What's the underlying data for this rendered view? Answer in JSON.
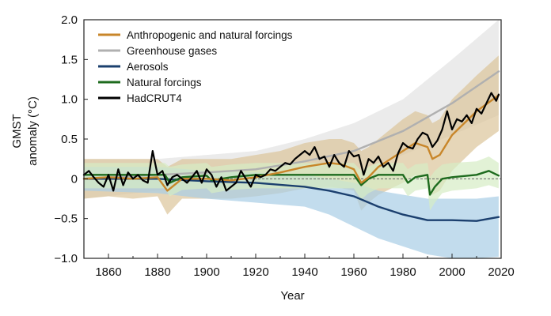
{
  "chart_data": {
    "type": "line",
    "title": "",
    "xlabel": "Year",
    "ylabel_line1": "GMST",
    "ylabel_line2": "anomaly (°C)",
    "xlim": [
      1850,
      2020
    ],
    "ylim": [
      -1.0,
      2.0
    ],
    "xticks": [
      1860,
      1880,
      1900,
      1920,
      1940,
      1960,
      1980,
      2000,
      2020
    ],
    "xtick_labels": [
      "1860",
      "1880",
      "1900",
      "1920",
      "1940",
      "1960",
      "1980",
      "2000",
      "2020"
    ],
    "yticks": [
      -1.0,
      -0.5,
      0,
      0.5,
      1.0,
      1.5,
      2.0
    ],
    "ytick_labels": [
      "−1.0",
      "−0.5",
      "0",
      "0.5",
      "1.0",
      "1.5",
      "2.0"
    ],
    "legend_position": "top-left",
    "reference_line": {
      "y": 0,
      "style": "dashed"
    },
    "series": [
      {
        "name": "Anthropogenic and natural forcings",
        "color": "#c8862a",
        "band_color": "#dcc49a",
        "x": [
          1850,
          1860,
          1870,
          1880,
          1884,
          1890,
          1900,
          1910,
          1920,
          1930,
          1940,
          1950,
          1955,
          1960,
          1963,
          1966,
          1970,
          1980,
          1985,
          1990,
          1992,
          1995,
          2000,
          2010,
          2019
        ],
        "y": [
          0.0,
          0.02,
          0.0,
          0.02,
          -0.15,
          0.0,
          0.0,
          -0.02,
          0.02,
          0.08,
          0.15,
          0.2,
          0.18,
          0.12,
          -0.05,
          0.02,
          0.15,
          0.35,
          0.45,
          0.4,
          0.25,
          0.3,
          0.55,
          0.85,
          1.05
        ],
        "upper": [
          0.25,
          0.25,
          0.25,
          0.25,
          0.15,
          0.25,
          0.25,
          0.25,
          0.3,
          0.35,
          0.45,
          0.5,
          0.5,
          0.45,
          0.35,
          0.4,
          0.5,
          0.75,
          0.85,
          0.8,
          0.7,
          0.75,
          1.0,
          1.3,
          1.55
        ],
        "lower": [
          -0.25,
          -0.22,
          -0.25,
          -0.22,
          -0.45,
          -0.25,
          -0.25,
          -0.25,
          -0.22,
          -0.18,
          -0.12,
          -0.1,
          -0.12,
          -0.15,
          -0.4,
          -0.3,
          -0.2,
          -0.05,
          0.05,
          0.0,
          -0.2,
          -0.15,
          0.1,
          0.4,
          0.6
        ]
      },
      {
        "name": "Greenhouse gases",
        "color": "#b0b0b0",
        "band_color": "#e2e2e2",
        "x": [
          1850,
          1880,
          1900,
          1920,
          1940,
          1960,
          1980,
          2000,
          2019
        ],
        "y": [
          0.0,
          0.05,
          0.08,
          0.12,
          0.22,
          0.35,
          0.6,
          0.95,
          1.35
        ],
        "upper": [
          0.25,
          0.25,
          0.3,
          0.35,
          0.5,
          0.7,
          1.0,
          1.5,
          2.0
        ],
        "lower": [
          -0.25,
          -0.15,
          -0.12,
          -0.1,
          0.0,
          0.1,
          0.3,
          0.55,
          0.8
        ]
      },
      {
        "name": "Aerosols",
        "color": "#1b3f6e",
        "band_color": "#a8cde6",
        "x": [
          1850,
          1880,
          1900,
          1920,
          1940,
          1950,
          1960,
          1970,
          1980,
          1990,
          2000,
          2010,
          2019
        ],
        "y": [
          0.0,
          0.0,
          -0.03,
          -0.05,
          -0.1,
          -0.15,
          -0.22,
          -0.35,
          -0.45,
          -0.52,
          -0.52,
          -0.53,
          -0.48
        ],
        "upper": [
          0.15,
          0.15,
          0.1,
          0.08,
          0.05,
          0.0,
          -0.05,
          -0.15,
          -0.2,
          -0.25,
          -0.25,
          -0.25,
          -0.22
        ],
        "lower": [
          -0.15,
          -0.18,
          -0.25,
          -0.3,
          -0.35,
          -0.45,
          -0.6,
          -0.75,
          -0.85,
          -0.95,
          -1.0,
          -1.0,
          -0.98
        ]
      },
      {
        "name": "Natural forcings",
        "color": "#1e6b1e",
        "band_color": "#d6ecc4",
        "x": [
          1850,
          1870,
          1883,
          1885,
          1890,
          1900,
          1902,
          1910,
          1920,
          1940,
          1960,
          1963,
          1966,
          1970,
          1980,
          1982,
          1985,
          1990,
          1991,
          1993,
          1996,
          2000,
          2010,
          2015,
          2019
        ],
        "y": [
          0.05,
          0.05,
          0.05,
          -0.05,
          0.02,
          0.04,
          -0.02,
          0.02,
          0.05,
          0.05,
          0.05,
          -0.08,
          0.0,
          0.05,
          0.05,
          -0.05,
          0.02,
          0.05,
          -0.2,
          -0.1,
          0.0,
          0.02,
          0.05,
          0.1,
          0.04
        ],
        "upper": [
          0.2,
          0.2,
          0.2,
          0.15,
          0.18,
          0.2,
          0.15,
          0.18,
          0.2,
          0.2,
          0.2,
          0.1,
          0.15,
          0.2,
          0.2,
          0.12,
          0.18,
          0.2,
          0.02,
          0.1,
          0.18,
          0.2,
          0.22,
          0.28,
          0.2
        ],
        "lower": [
          -0.12,
          -0.12,
          -0.12,
          -0.22,
          -0.14,
          -0.12,
          -0.18,
          -0.14,
          -0.12,
          -0.12,
          -0.12,
          -0.26,
          -0.18,
          -0.12,
          -0.12,
          -0.22,
          -0.15,
          -0.12,
          -0.4,
          -0.3,
          -0.18,
          -0.15,
          -0.12,
          -0.08,
          -0.12
        ]
      },
      {
        "name": "HadCRUT4",
        "color": "#000000",
        "x": [
          1850,
          1852,
          1854,
          1856,
          1858,
          1860,
          1862,
          1864,
          1866,
          1868,
          1870,
          1872,
          1874,
          1876,
          1878,
          1880,
          1882,
          1884,
          1886,
          1888,
          1890,
          1892,
          1894,
          1896,
          1898,
          1900,
          1902,
          1904,
          1906,
          1908,
          1910,
          1912,
          1914,
          1916,
          1918,
          1920,
          1922,
          1924,
          1926,
          1928,
          1930,
          1932,
          1934,
          1936,
          1938,
          1940,
          1942,
          1944,
          1946,
          1948,
          1950,
          1952,
          1954,
          1956,
          1958,
          1960,
          1962,
          1964,
          1966,
          1968,
          1970,
          1972,
          1974,
          1976,
          1978,
          1980,
          1982,
          1984,
          1986,
          1988,
          1990,
          1992,
          1994,
          1996,
          1998,
          2000,
          2002,
          2004,
          2006,
          2008,
          2010,
          2012,
          2014,
          2016,
          2018,
          2019
        ],
        "y": [
          0.05,
          0.1,
          0.02,
          -0.05,
          -0.1,
          0.05,
          -0.15,
          0.12,
          -0.08,
          0.08,
          0.0,
          0.05,
          -0.02,
          -0.05,
          0.35,
          0.05,
          0.1,
          -0.08,
          0.02,
          0.05,
          0.0,
          -0.05,
          0.02,
          0.1,
          -0.05,
          0.12,
          0.05,
          -0.1,
          0.02,
          -0.15,
          -0.1,
          -0.05,
          0.1,
          0.0,
          -0.1,
          0.05,
          0.02,
          0.05,
          0.12,
          0.1,
          0.15,
          0.2,
          0.18,
          0.25,
          0.3,
          0.35,
          0.3,
          0.4,
          0.25,
          0.28,
          0.15,
          0.3,
          0.2,
          0.15,
          0.35,
          0.28,
          0.3,
          0.05,
          0.25,
          0.2,
          0.28,
          0.15,
          0.2,
          0.1,
          0.32,
          0.45,
          0.4,
          0.38,
          0.5,
          0.58,
          0.55,
          0.4,
          0.48,
          0.62,
          0.85,
          0.62,
          0.75,
          0.72,
          0.8,
          0.7,
          0.88,
          0.82,
          0.95,
          1.08,
          0.98,
          1.06
        ]
      }
    ]
  }
}
